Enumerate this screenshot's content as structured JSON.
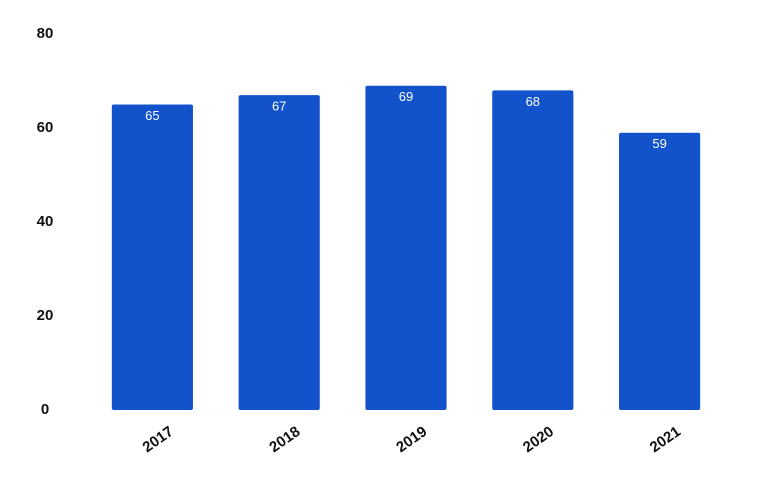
{
  "chart_data": {
    "type": "bar",
    "categories": [
      "2017",
      "2018",
      "2019",
      "2020",
      "2021"
    ],
    "values": [
      65,
      67,
      69,
      68,
      59
    ],
    "color": "#1253cc",
    "ylim": [
      0,
      80
    ],
    "yticks": [
      0,
      20,
      40,
      60,
      80
    ],
    "grid": false
  }
}
